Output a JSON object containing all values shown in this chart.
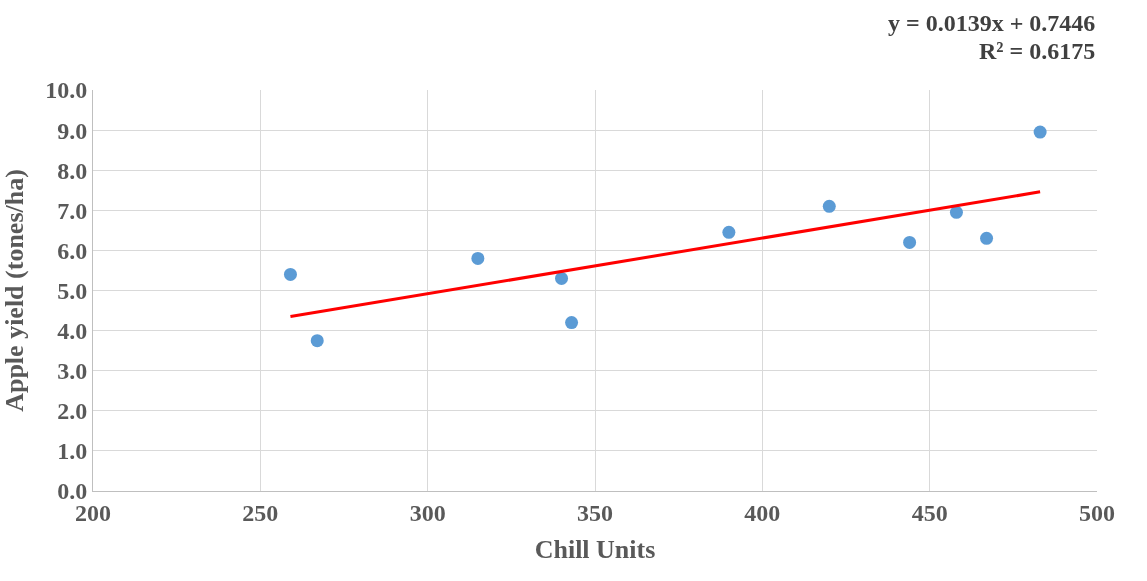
{
  "chart_data": {
    "type": "scatter",
    "xlabel": "Chill Units",
    "ylabel": "Apple yield (tones/ha)",
    "xlim": [
      200,
      500
    ],
    "xticks": [
      200,
      250,
      300,
      350,
      400,
      450,
      500
    ],
    "ylim": [
      0,
      10
    ],
    "yticks": [
      {
        "value": 0,
        "label": "0.0"
      },
      {
        "value": 1,
        "label": "1.0"
      },
      {
        "value": 2,
        "label": "2.0"
      },
      {
        "value": 3,
        "label": "3.0"
      },
      {
        "value": 4,
        "label": "4.0"
      },
      {
        "value": 5,
        "label": "5.0"
      },
      {
        "value": 6,
        "label": "6.0"
      },
      {
        "value": 7,
        "label": "7.0"
      },
      {
        "value": 8,
        "label": "8.0"
      },
      {
        "value": 9,
        "label": "9.0"
      },
      {
        "value": 10,
        "label": "10.0"
      }
    ],
    "grid": true,
    "series": [
      {
        "marker": "circle",
        "color": "#5b9bd5",
        "x": [
          259,
          267,
          315,
          340,
          343,
          390,
          420,
          444,
          458,
          467,
          483
        ],
        "values": [
          5.4,
          3.75,
          5.8,
          5.3,
          4.2,
          6.45,
          7.1,
          6.2,
          6.95,
          6.3,
          8.95
        ]
      },
      {
        "type": "line",
        "color": "#ff0000",
        "line_style": "solid",
        "x": [
          259,
          483
        ],
        "values": [
          4.35,
          7.46
        ]
      }
    ],
    "annotations": [
      "y = 0.0139x + 0.7446",
      "R² = 0.6175"
    ]
  }
}
